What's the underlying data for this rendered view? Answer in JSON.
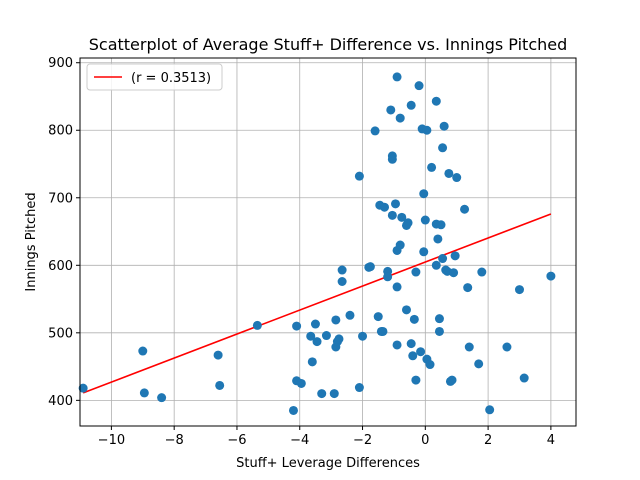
{
  "chart_data": {
    "type": "scatter",
    "title": "Scatterplot of Average Stuff+ Difference vs. Innings Pitched",
    "xlabel": "Stuff+ Leverage Differences",
    "ylabel": "Innings Pitched",
    "xlim": [
      -11.0,
      4.8
    ],
    "ylim": [
      362,
      907
    ],
    "xticks": [
      -10,
      -8,
      -6,
      -4,
      -2,
      0,
      2,
      4
    ],
    "xtick_labels": [
      "−10",
      "−8",
      "−6",
      "−4",
      "−2",
      "0",
      "2",
      "4"
    ],
    "yticks": [
      400,
      500,
      600,
      700,
      800,
      900
    ],
    "ytick_labels": [
      "400",
      "500",
      "600",
      "700",
      "800",
      "900"
    ],
    "grid": true,
    "legend_position": "top-left",
    "colors": {
      "points": "#1f77b4",
      "fit_line": "#ff0000",
      "grid": "#b0b0b0"
    },
    "series": [
      {
        "name": "",
        "points": [
          [
            -10.9,
            418
          ],
          [
            -9.0,
            473
          ],
          [
            -8.95,
            411
          ],
          [
            -8.4,
            404
          ],
          [
            -6.6,
            467
          ],
          [
            -6.55,
            422
          ],
          [
            -5.35,
            511
          ],
          [
            -4.2,
            385
          ],
          [
            -4.1,
            510
          ],
          [
            -4.1,
            429
          ],
          [
            -3.95,
            425
          ],
          [
            -3.65,
            495
          ],
          [
            -3.6,
            457
          ],
          [
            -3.5,
            513
          ],
          [
            -3.45,
            487
          ],
          [
            -3.3,
            410
          ],
          [
            -3.15,
            496
          ],
          [
            -2.9,
            410
          ],
          [
            -2.85,
            519
          ],
          [
            -2.85,
            479
          ],
          [
            -2.8,
            487
          ],
          [
            -2.75,
            491
          ],
          [
            -2.65,
            593
          ],
          [
            -2.65,
            576
          ],
          [
            -2.4,
            526
          ],
          [
            -2.1,
            732
          ],
          [
            -2.1,
            419
          ],
          [
            -2.0,
            495
          ],
          [
            -1.8,
            597
          ],
          [
            -1.75,
            598
          ],
          [
            -1.6,
            799
          ],
          [
            -1.5,
            524
          ],
          [
            -1.45,
            689
          ],
          [
            -1.4,
            502
          ],
          [
            -1.35,
            502
          ],
          [
            -1.3,
            686
          ],
          [
            -1.2,
            591
          ],
          [
            -1.2,
            583
          ],
          [
            -1.1,
            830
          ],
          [
            -1.05,
            762
          ],
          [
            -1.05,
            757
          ],
          [
            -1.05,
            674
          ],
          [
            -0.95,
            691
          ],
          [
            -0.9,
            879
          ],
          [
            -0.9,
            622
          ],
          [
            -0.9,
            568
          ],
          [
            -0.9,
            482
          ],
          [
            -0.8,
            818
          ],
          [
            -0.8,
            630
          ],
          [
            -0.75,
            671
          ],
          [
            -0.6,
            534
          ],
          [
            -0.6,
            659
          ],
          [
            -0.55,
            663
          ],
          [
            -0.45,
            837
          ],
          [
            -0.45,
            484
          ],
          [
            -0.4,
            466
          ],
          [
            -0.35,
            520
          ],
          [
            -0.3,
            590
          ],
          [
            -0.3,
            430
          ],
          [
            -0.2,
            866
          ],
          [
            -0.15,
            472
          ],
          [
            -0.1,
            802
          ],
          [
            -0.05,
            706
          ],
          [
            -0.05,
            620
          ],
          [
            0.0,
            667
          ],
          [
            0.05,
            800
          ],
          [
            0.05,
            461
          ],
          [
            0.15,
            453
          ],
          [
            0.2,
            745
          ],
          [
            0.35,
            843
          ],
          [
            0.35,
            661
          ],
          [
            0.35,
            600
          ],
          [
            0.4,
            639
          ],
          [
            0.45,
            521
          ],
          [
            0.45,
            502
          ],
          [
            0.5,
            660
          ],
          [
            0.55,
            610
          ],
          [
            0.55,
            774
          ],
          [
            0.6,
            806
          ],
          [
            0.65,
            593
          ],
          [
            0.7,
            591
          ],
          [
            0.75,
            736
          ],
          [
            0.8,
            428
          ],
          [
            0.85,
            430
          ],
          [
            0.9,
            589
          ],
          [
            0.95,
            614
          ],
          [
            1.0,
            730
          ],
          [
            1.25,
            683
          ],
          [
            1.35,
            567
          ],
          [
            1.4,
            479
          ],
          [
            1.7,
            454
          ],
          [
            1.8,
            590
          ],
          [
            2.05,
            386
          ],
          [
            2.6,
            479
          ],
          [
            3.0,
            564
          ],
          [
            3.15,
            433
          ],
          [
            4.0,
            584
          ]
        ]
      }
    ],
    "fit_line": {
      "label": "(r = 0.3513)",
      "x": [
        -10.9,
        4.0
      ],
      "y": [
        411,
        676
      ]
    }
  }
}
